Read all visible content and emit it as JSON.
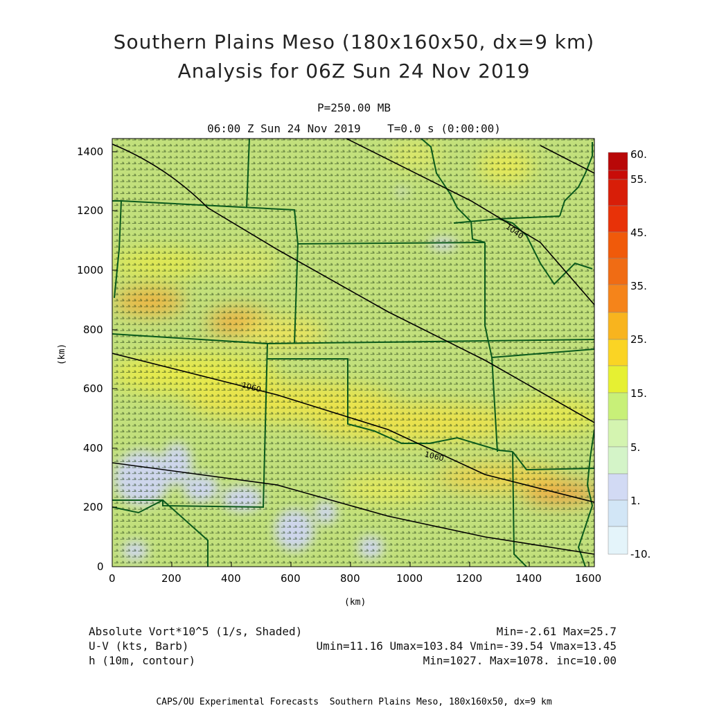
{
  "header": {
    "title_line1": "Southern Plains Meso (180x160x50, dx=9 km)",
    "title_line2": "Analysis for 06Z Sun 24 Nov 2019",
    "level": "P=250.00 MB",
    "time": "06:00 Z Sun 24 Nov 2019    T=0.0 s (0:00:00)"
  },
  "axes": {
    "unit_label": "(km)",
    "x_ticks": [
      "0",
      "200",
      "400",
      "600",
      "800",
      "1000",
      "1200",
      "1400",
      "1600"
    ],
    "y_ticks": [
      "0",
      "200",
      "400",
      "600",
      "800",
      "1000",
      "1200",
      "1400"
    ],
    "x_range": [
      0,
      1620
    ],
    "y_range": [
      0,
      1440
    ]
  },
  "colorbar": {
    "labels": [
      "60.",
      "55.",
      "45.",
      "35.",
      "25.",
      "15.",
      "5.",
      "1.",
      "-10."
    ],
    "colors": [
      "#b80808",
      "#d81e08",
      "#e83208",
      "#f05a0a",
      "#f5841a",
      "#f8b41e",
      "#fad424",
      "#e6f032",
      "#c8f078",
      "#d4f4b0",
      "#d2daf4",
      "#d2e6f6",
      "#e4f4fa"
    ]
  },
  "contours": {
    "labels": [
      "1040",
      "1060",
      "1060"
    ]
  },
  "legend": {
    "shade_label": "Absolute Vort*10^5 (1/s, Shaded)",
    "shade_stats": "Min=-2.61 Max=25.7",
    "barb_label": "U-V (kts, Barb)",
    "barb_stats": "Umin=11.16 Umax=103.84 Vmin=-39.54 Vmax=13.45",
    "contour_label": "h (10m, contour)",
    "contour_stats": "Min=1027. Max=1078. inc=10.00"
  },
  "footer": {
    "credit": "CAPS/OU Experimental Forecasts  Southern Plains Meso, 180x160x50, dx=9 km"
  },
  "colors": {
    "base_field": "#c2e07c",
    "yellow": "#e8ea4c",
    "orange": "#f3a83a",
    "blue": "#cdd6f4",
    "border": "#0b5a1c",
    "contour": "#000000"
  }
}
